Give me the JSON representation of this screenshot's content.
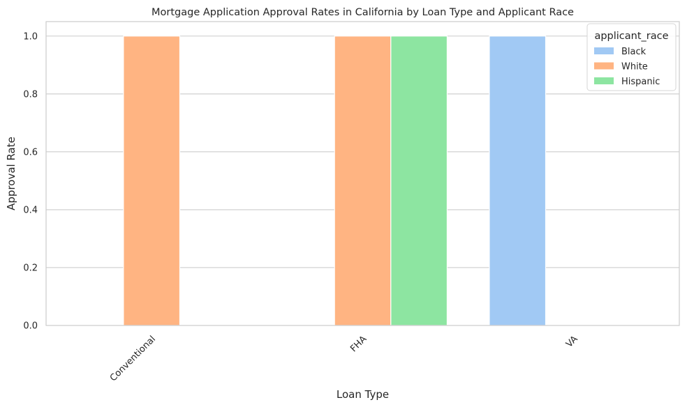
{
  "chart_data": {
    "type": "bar",
    "title": "Mortgage Application Approval Rates in California by Loan Type and Applicant Race",
    "xlabel": "Loan Type",
    "ylabel": "Approval Rate",
    "categories": [
      "Conventional",
      "FHA",
      "VA"
    ],
    "ylim": [
      0,
      1.05
    ],
    "yticks": [
      "0.0",
      "0.2",
      "0.4",
      "0.6",
      "0.8",
      "1.0"
    ],
    "grid": "horizontal",
    "legend": {
      "title": "applicant_race",
      "placement": "top-right"
    },
    "series": [
      {
        "name": "Black",
        "color": "#a1c9f4",
        "values": [
          null,
          null,
          1.0
        ]
      },
      {
        "name": "White",
        "color": "#ffb482",
        "values": [
          1.0,
          1.0,
          null
        ]
      },
      {
        "name": "Hispanic",
        "color": "#8de5a1",
        "values": [
          null,
          1.0,
          null
        ]
      }
    ]
  }
}
